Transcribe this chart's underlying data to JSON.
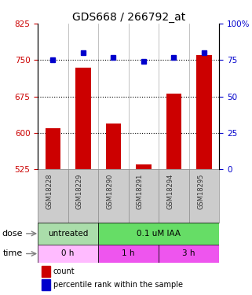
{
  "title": "GDS668 / 266792_at",
  "samples": [
    "GSM18228",
    "GSM18229",
    "GSM18290",
    "GSM18291",
    "GSM18294",
    "GSM18295"
  ],
  "counts": [
    610,
    735,
    620,
    535,
    680,
    760
  ],
  "percentiles": [
    75,
    80,
    77,
    74,
    77,
    80
  ],
  "ylim_left": [
    525,
    825
  ],
  "ylim_right": [
    0,
    100
  ],
  "yticks_left": [
    525,
    600,
    675,
    750,
    825
  ],
  "yticks_right": [
    0,
    25,
    50,
    75,
    100
  ],
  "yticks_right_labels": [
    "0",
    "25",
    "50",
    "75",
    "100%"
  ],
  "hlines": [
    600,
    675,
    750
  ],
  "bar_color": "#cc0000",
  "dot_color": "#0000cc",
  "dose_groups": [
    {
      "label": "untreated",
      "start": 0,
      "end": 2,
      "color": "#aaddaa"
    },
    {
      "label": "0.1 uM IAA",
      "start": 2,
      "end": 6,
      "color": "#66dd66"
    }
  ],
  "time_groups": [
    {
      "label": "0 h",
      "start": 0,
      "end": 2,
      "color": "#ffbbff"
    },
    {
      "label": "1 h",
      "start": 2,
      "end": 4,
      "color": "#ee55ee"
    },
    {
      "label": "3 h",
      "start": 4,
      "end": 6,
      "color": "#ee55ee"
    }
  ],
  "dose_label": "dose",
  "time_label": "time",
  "legend_count": "count",
  "legend_percentile": "percentile rank within the sample",
  "title_fontsize": 10,
  "tick_fontsize": 7.5,
  "bar_width": 0.5,
  "left_tick_color": "#cc0000",
  "right_tick_color": "#0000cc",
  "sample_label_color": "#333333",
  "sample_bg_color": "#cccccc"
}
